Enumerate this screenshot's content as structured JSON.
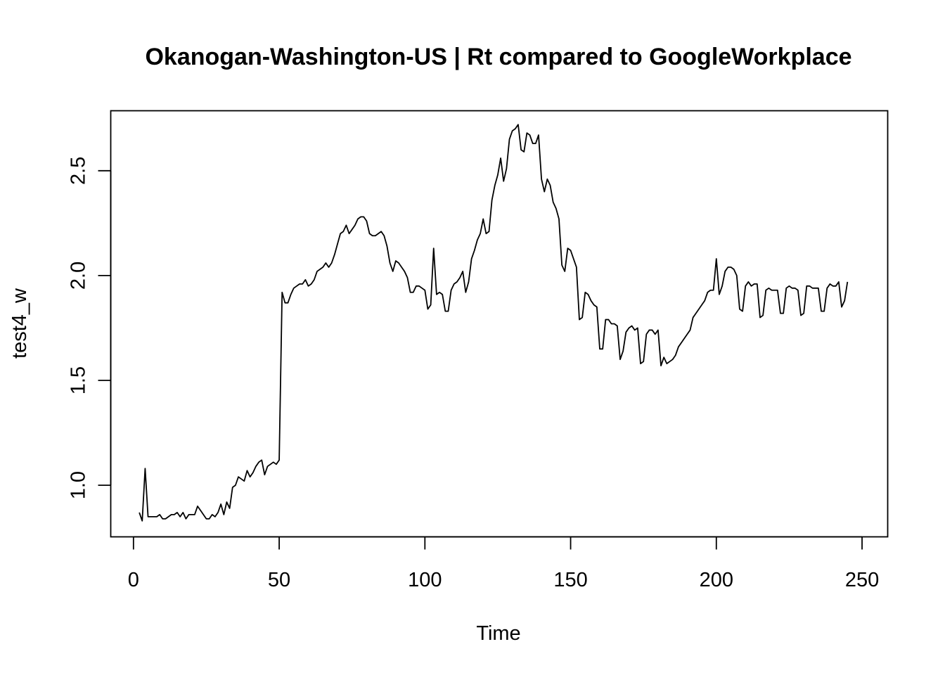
{
  "chart_data": {
    "type": "line",
    "title": "Okanogan-Washington-US | Rt compared to GoogleWorkplace",
    "xlabel": "Time",
    "ylabel": "test4_w",
    "xlim": [
      -7.8,
      258.8
    ],
    "ylim": [
      0.754,
      2.786
    ],
    "x_ticks": [
      0,
      50,
      100,
      150,
      200,
      250
    ],
    "x_tick_labels": [
      "0",
      "50",
      "100",
      "150",
      "200",
      "250"
    ],
    "y_ticks": [
      1.0,
      1.5,
      2.0,
      2.5
    ],
    "y_tick_labels": [
      "1.0",
      "1.5",
      "2.0",
      "2.5"
    ],
    "grid": false,
    "legend": "none",
    "series": [
      {
        "color": "#000000",
        "x_start": 2,
        "x_step": 1,
        "values": [
          0.87,
          0.83,
          1.08,
          0.85,
          0.85,
          0.85,
          0.85,
          0.86,
          0.84,
          0.84,
          0.85,
          0.86,
          0.86,
          0.87,
          0.85,
          0.87,
          0.84,
          0.86,
          0.86,
          0.86,
          0.9,
          0.88,
          0.86,
          0.84,
          0.84,
          0.86,
          0.85,
          0.87,
          0.91,
          0.86,
          0.92,
          0.89,
          0.99,
          1.0,
          1.04,
          1.03,
          1.02,
          1.07,
          1.04,
          1.06,
          1.09,
          1.11,
          1.12,
          1.05,
          1.09,
          1.1,
          1.11,
          1.1,
          1.12,
          1.92,
          1.87,
          1.87,
          1.91,
          1.94,
          1.95,
          1.96,
          1.96,
          1.98,
          1.95,
          1.96,
          1.98,
          2.02,
          2.03,
          2.04,
          2.06,
          2.04,
          2.06,
          2.1,
          2.15,
          2.2,
          2.21,
          2.24,
          2.2,
          2.22,
          2.24,
          2.27,
          2.28,
          2.28,
          2.26,
          2.2,
          2.19,
          2.19,
          2.2,
          2.21,
          2.19,
          2.14,
          2.06,
          2.02,
          2.07,
          2.06,
          2.04,
          2.02,
          1.99,
          1.92,
          1.92,
          1.95,
          1.95,
          1.94,
          1.93,
          1.84,
          1.86,
          2.13,
          1.91,
          1.92,
          1.91,
          1.83,
          1.83,
          1.93,
          1.96,
          1.97,
          1.99,
          2.02,
          1.92,
          1.97,
          2.08,
          2.12,
          2.17,
          2.2,
          2.27,
          2.2,
          2.21,
          2.36,
          2.43,
          2.48,
          2.56,
          2.45,
          2.51,
          2.65,
          2.69,
          2.7,
          2.72,
          2.6,
          2.59,
          2.68,
          2.67,
          2.63,
          2.63,
          2.67,
          2.46,
          2.4,
          2.46,
          2.43,
          2.35,
          2.32,
          2.27,
          2.05,
          2.02,
          2.13,
          2.12,
          2.08,
          2.04,
          1.79,
          1.8,
          1.92,
          1.91,
          1.88,
          1.86,
          1.85,
          1.65,
          1.65,
          1.79,
          1.79,
          1.77,
          1.77,
          1.76,
          1.6,
          1.64,
          1.73,
          1.75,
          1.76,
          1.74,
          1.75,
          1.58,
          1.59,
          1.72,
          1.74,
          1.74,
          1.72,
          1.74,
          1.57,
          1.61,
          1.58,
          1.59,
          1.6,
          1.62,
          1.66,
          1.68,
          1.7,
          1.72,
          1.74,
          1.8,
          1.82,
          1.84,
          1.86,
          1.88,
          1.92,
          1.93,
          1.93,
          2.08,
          1.91,
          1.95,
          2.02,
          2.04,
          2.04,
          2.03,
          2.0,
          1.84,
          1.83,
          1.95,
          1.97,
          1.95,
          1.96,
          1.96,
          1.8,
          1.81,
          1.93,
          1.94,
          1.93,
          1.93,
          1.93,
          1.82,
          1.82,
          1.94,
          1.95,
          1.94,
          1.94,
          1.93,
          1.81,
          1.82,
          1.95,
          1.95,
          1.94,
          1.94,
          1.94,
          1.83,
          1.83,
          1.94,
          1.96,
          1.95,
          1.95,
          1.97,
          1.85,
          1.88,
          1.97
        ]
      }
    ]
  }
}
